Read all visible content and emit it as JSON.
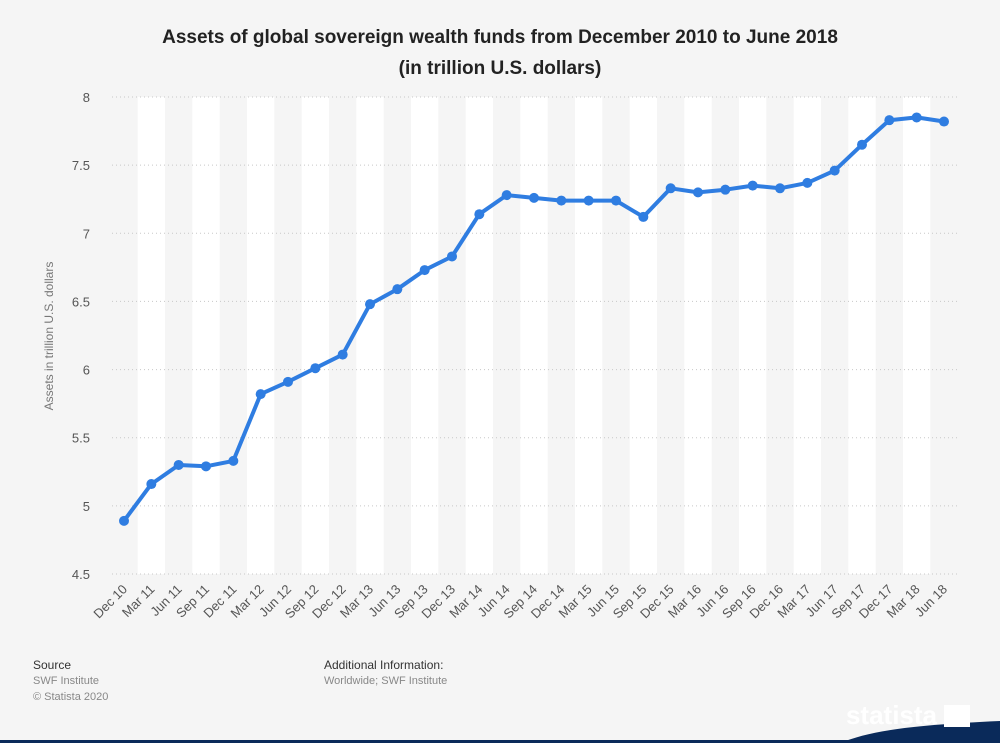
{
  "title_line1": "Assets of global sovereign wealth funds from December 2010 to June 2018",
  "title_line2": "(in trillion U.S. dollars)",
  "footer": {
    "source_heading": "Source",
    "source_text": "SWF Institute",
    "copyright": "© Statista 2020",
    "additional_heading": "Additional Information:",
    "additional_text": "Worldwide; SWF Institute"
  },
  "brand": "statista",
  "colors": {
    "line": "#2f7de1",
    "background": "#f5f5f5",
    "stripe": "#ffffff",
    "brand_bg": "#0a2a5a"
  },
  "chart_data": {
    "type": "line",
    "title": "Assets of global sovereign wealth funds from December 2010 to June 2018",
    "subtitle": "(in trillion U.S. dollars)",
    "xlabel": "",
    "ylabel": "Assets in trillion U.S. dollars",
    "ylim": [
      4.5,
      8
    ],
    "yticks": [
      4.5,
      5,
      5.5,
      6,
      6.5,
      7,
      7.5,
      8
    ],
    "ytick_labels": [
      "4.5",
      "5",
      "5.5",
      "6",
      "6.5",
      "7",
      "7.5",
      "8"
    ],
    "grid": true,
    "categories": [
      "Dec 10",
      "Mar 11",
      "Jun 11",
      "Sep 11",
      "Dec 11",
      "Mar 12",
      "Jun 12",
      "Sep 12",
      "Dec 12",
      "Mar 13",
      "Jun 13",
      "Sep 13",
      "Dec 13",
      "Mar 14",
      "Jun 14",
      "Sep 14",
      "Dec 14",
      "Mar 15",
      "Jun 15",
      "Sep 15",
      "Dec 15",
      "Mar 16",
      "Jun 16",
      "Sep 16",
      "Dec 16",
      "Mar 17",
      "Jun 17",
      "Sep 17",
      "Dec 17",
      "Mar 18",
      "Jun 18"
    ],
    "values": [
      4.89,
      5.16,
      5.3,
      5.29,
      5.33,
      5.82,
      5.91,
      6.01,
      6.11,
      6.48,
      6.59,
      6.73,
      6.83,
      7.14,
      7.28,
      7.26,
      7.24,
      7.24,
      7.24,
      7.12,
      7.33,
      7.3,
      7.32,
      7.35,
      7.33,
      7.37,
      7.46,
      7.65,
      7.83,
      7.85,
      7.82
    ]
  }
}
